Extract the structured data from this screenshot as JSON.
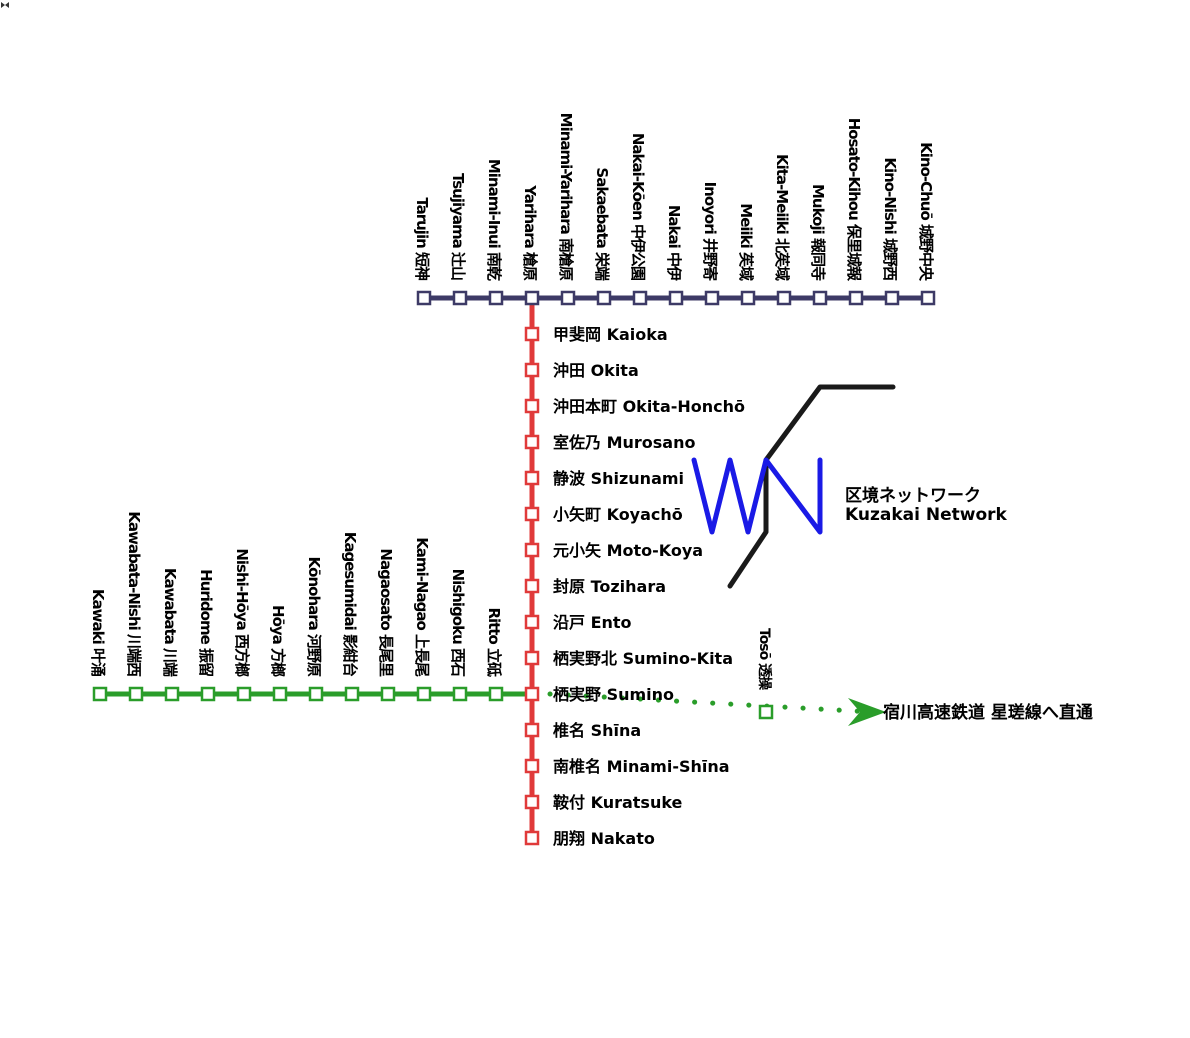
{
  "colors": {
    "top_line": "#3d3a66",
    "main_line": "#e03a3a",
    "branch_line": "#2a9d2a",
    "logo_blue": "#1a1ae6",
    "logo_black": "#1a1a1a"
  },
  "top_line": {
    "stations": [
      "Tarujin 短神",
      "Tsujiyama 辻山",
      "Minami-Inui 南乾",
      "Yarihara 槍原",
      "Minami-Yarihara 南槍原",
      "Sakaebata 栄端",
      "Nakai-Kōen 中伊公園",
      "Nakai 中伊",
      "Inoyori 井野寄",
      "Meiiki 苵域",
      "Kita-Meiiki 北苵域",
      "Mukoji 報同寺",
      "Hosato-Kihou 保里城報",
      "Kino-Nishi 城野西",
      "Kino-Chuō 城野中央"
    ]
  },
  "main_line": {
    "stations": [
      "甲斐岡 Kaioka",
      "沖田 Okita",
      "沖田本町 Okita-Honchō",
      "室佐乃 Murosano",
      "静波 Shizunami",
      "小矢町 Koyachō",
      "元小矢 Moto-Koya",
      "封原 Tozihara",
      "沿戸 Ento",
      "栖実野北 Sumino-Kita",
      "栖実野 Sumino",
      "椎名 Shīna",
      "南椎名 Minami-Shīna",
      "鞍付 Kuratsuke",
      "朋翔 Nakato"
    ]
  },
  "branch_line": {
    "stations": [
      "Kawaki 叶涌",
      "Kawabata-Nishi 川端西",
      "Kawabata 川端",
      "Huridome 振留",
      "Nishi-Hōya 西方榔",
      "Hōya 方榔",
      "Kōnohara 河野原",
      "Kagesumidai 影紺台",
      "Nagaosato 長尾里",
      "Kami-Nagao 上長尾",
      "Nishigoku 西石",
      "Ritto 立砥"
    ],
    "extension_station": "Tosō 透操",
    "through_service": "宿川高速鉄道 星瑳線へ直通"
  },
  "network_logo": {
    "name_ja": "区境ネットワーク",
    "name_en": "Kuzakai Network"
  }
}
